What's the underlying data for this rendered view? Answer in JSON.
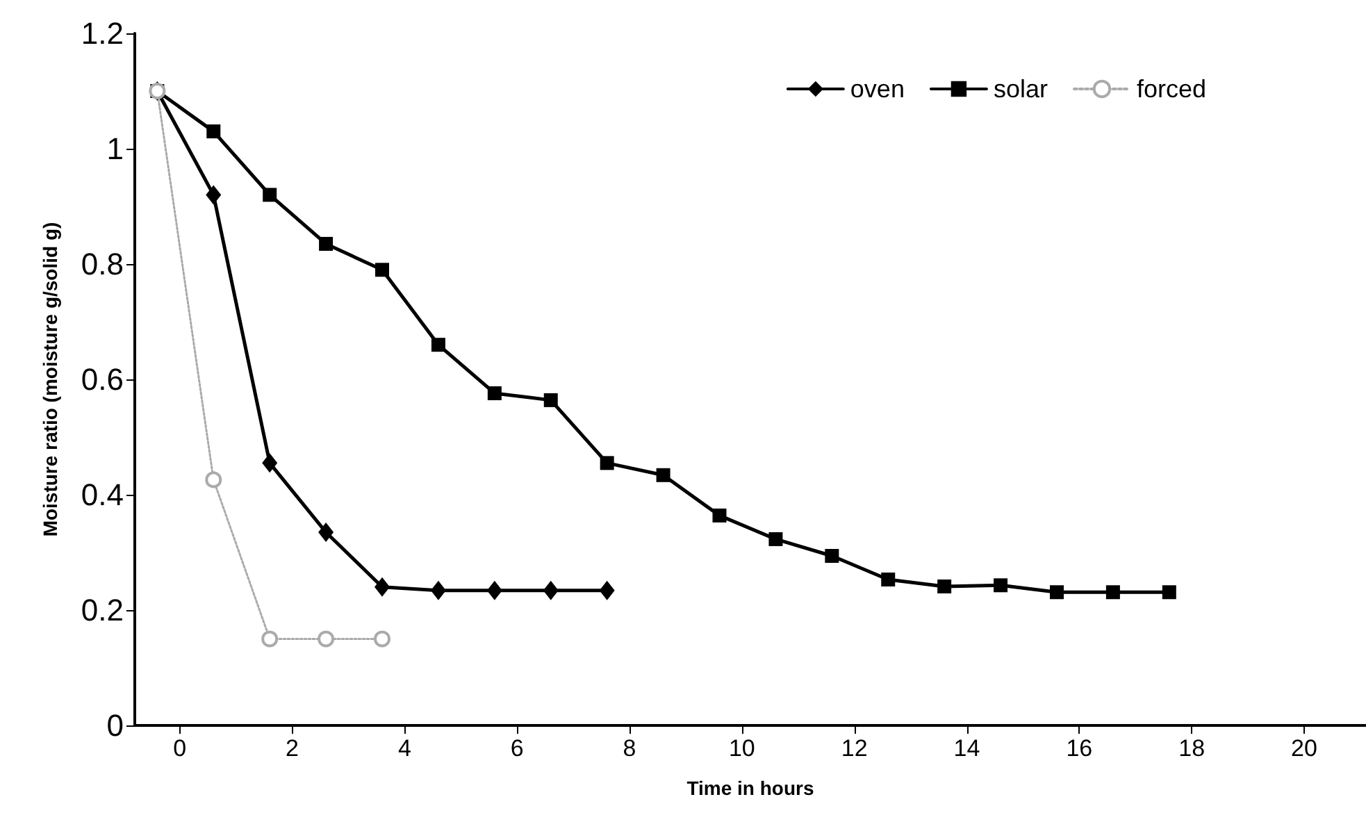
{
  "chart_data": {
    "type": "line",
    "xlabel": "Time in hours",
    "ylabel": "Moisture ratio (moisture g/solid g)",
    "x": [
      -0.4,
      0.6,
      1.6,
      2.6,
      3.6,
      4.6,
      5.6,
      6.6,
      7.6,
      8.6,
      9.6,
      10.6,
      11.6,
      12.6,
      13.6,
      14.6,
      15.6,
      16.6,
      17.6
    ],
    "xlim": [
      -0.8,
      21.1
    ],
    "xticks": [
      0,
      2,
      4,
      6,
      8,
      10,
      12,
      14,
      16,
      18,
      20
    ],
    "ylim": [
      0,
      1.2
    ],
    "yticks": [
      0,
      0.2,
      0.4,
      0.6,
      0.8,
      1,
      1.2
    ],
    "grid": false,
    "legend": "top right",
    "series": [
      {
        "name": "oven",
        "color": "#000000",
        "marker": "diamond",
        "line_style": "solid",
        "values": [
          1.1,
          0.92,
          0.455,
          0.335,
          0.24,
          0.234,
          0.234,
          0.234,
          0.234,
          null,
          null,
          null,
          null,
          null,
          null,
          null,
          null,
          null,
          null
        ]
      },
      {
        "name": "solar",
        "color": "#000000",
        "marker": "square",
        "line_style": "solid",
        "values": [
          1.1,
          1.03,
          0.92,
          0.835,
          0.79,
          0.66,
          0.576,
          0.564,
          0.455,
          0.434,
          0.364,
          0.323,
          0.294,
          0.253,
          0.241,
          0.243,
          0.231,
          0.231,
          0.231
        ]
      },
      {
        "name": "forced",
        "color": "#aaaaaa",
        "marker": "circle",
        "line_style": "dotted",
        "values": [
          1.1,
          0.426,
          0.15,
          0.15,
          0.15,
          null,
          null,
          null,
          null,
          null,
          null,
          null,
          null,
          null,
          null,
          null,
          null,
          null,
          null
        ]
      }
    ]
  }
}
